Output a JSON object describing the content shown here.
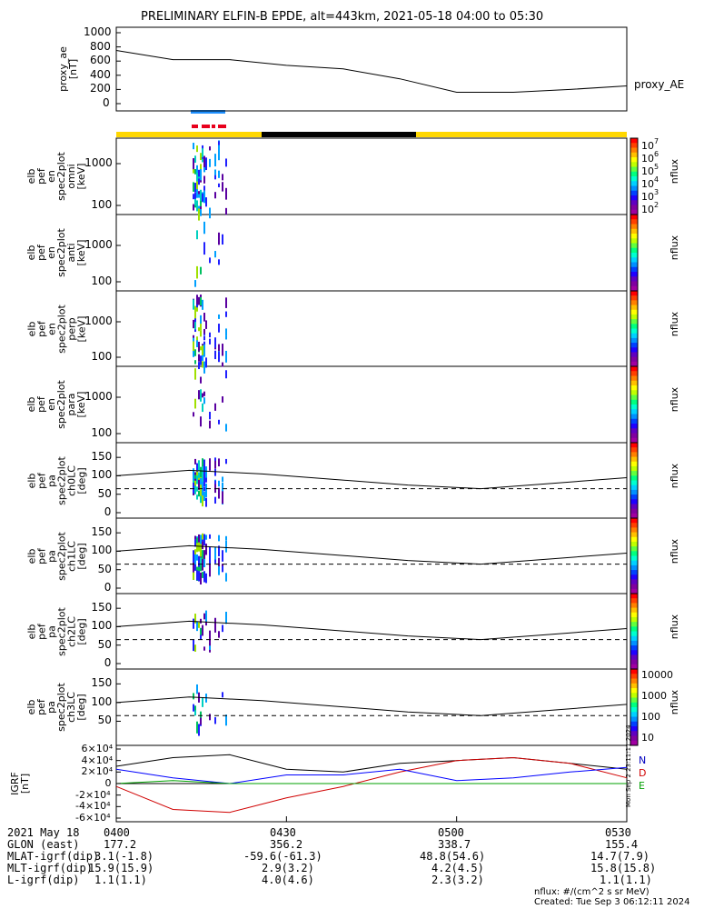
{
  "title": "PRELIMINARY ELFIN-B EPDE, alt=443km, 2021-05-18 04:00 to 05:30",
  "colors": {
    "orbit_bar_light": "#ffd700",
    "orbit_bar_dark": "#000000",
    "sci_zone_blue": "#1e90ff",
    "sci_zone_red": "#e8001c"
  },
  "panels": [
    {
      "id": "ae",
      "ylabel": [
        "proxy_ae",
        "[nT]"
      ],
      "yticks": [
        "0",
        "200",
        "400",
        "600",
        "800",
        "1000"
      ],
      "right_label": "proxy_AE"
    },
    {
      "id": "omni",
      "ylabel": [
        "elb",
        "pef",
        "en",
        "spec2plot",
        "omni",
        "[keV]"
      ],
      "yticks": [
        "100",
        "1000"
      ],
      "cbar": [
        "10",
        "2",
        "10",
        "3",
        "10",
        "4",
        "10",
        "5",
        "10",
        "6",
        "10",
        "7"
      ],
      "cbar_label": "nflux"
    },
    {
      "id": "anti",
      "ylabel": [
        "elb",
        "pef",
        "en",
        "spec2plot",
        "anti",
        "[keV]"
      ],
      "yticks": [
        "100",
        "1000"
      ],
      "cbar_label": "nflux"
    },
    {
      "id": "perp",
      "ylabel": [
        "elb",
        "pef",
        "en",
        "spec2plot",
        "perp",
        "[keV]"
      ],
      "yticks": [
        "100",
        "1000"
      ],
      "cbar_label": "nflux"
    },
    {
      "id": "para",
      "ylabel": [
        "elb",
        "pef",
        "en",
        "spec2plot",
        "para",
        "[keV]"
      ],
      "yticks": [
        "100",
        "1000"
      ],
      "cbar_label": "nflux"
    },
    {
      "id": "ch0",
      "ylabel": [
        "elb",
        "pef",
        "pa",
        "spec2plot",
        "ch0LC",
        "[deg]"
      ],
      "yticks": [
        "0",
        "50",
        "100",
        "150"
      ],
      "cbar_label": "nflux"
    },
    {
      "id": "ch1",
      "ylabel": [
        "elb",
        "pef",
        "pa",
        "spec2plot",
        "ch1LC",
        "[deg]"
      ],
      "yticks": [
        "0",
        "50",
        "100",
        "150"
      ],
      "cbar_label": "nflux"
    },
    {
      "id": "ch2",
      "ylabel": [
        "elb",
        "pef",
        "pa",
        "spec2plot",
        "ch2LC",
        "[deg]"
      ],
      "yticks": [
        "0",
        "50",
        "100",
        "150"
      ],
      "cbar_label": "nflux"
    },
    {
      "id": "ch3",
      "ylabel": [
        "elb",
        "pef",
        "pa",
        "spec2plot",
        "ch3LC",
        "[deg]"
      ],
      "yticks": [
        "50",
        "100",
        "150"
      ],
      "cbar": [
        "10",
        "100",
        "1000",
        "10000"
      ],
      "cbar_label": "nflux"
    },
    {
      "id": "bfield",
      "ylabel": [
        "IGRF",
        "[nT]"
      ],
      "yticks": [
        "-6×10⁴",
        "-4×10⁴",
        "-2×10⁴",
        "0",
        "2×10⁴",
        "4×10⁴",
        "6×10⁴"
      ],
      "legend": [
        "N",
        "D",
        "E"
      ]
    }
  ],
  "footer": {
    "rows": [
      {
        "label": "2021 May 18",
        "values": [
          "0400",
          "0430",
          "0500",
          "0530"
        ]
      },
      {
        "label": "GLON (east)",
        "values": [
          "177.2",
          "356.2",
          "338.7",
          "155.4"
        ]
      },
      {
        "label": "MLAT-igrf(dip)",
        "values": [
          "3.1(-1.8)",
          "-59.6(-61.3)",
          "48.8(54.6)",
          "14.7(7.9)"
        ]
      },
      {
        "label": "MLT-igrf(dip)",
        "values": [
          "15.9(15.9)",
          "2.9(3.2)",
          "4.2(4.5)",
          "15.8(15.8)"
        ]
      },
      {
        "label": "L-igrf(dip)",
        "values": [
          "1.1(1.1)",
          "4.0(4.6)",
          "2.3(3.2)",
          "1.1(1.1)"
        ]
      }
    ],
    "units_note": "nflux: #/(cm^2 s sr MeV)",
    "created": "Created: Tue Sep  3 06:12:11 2024",
    "side_stamp": "Mon Sep  2 23:11:11 2024"
  },
  "chart_data": [
    {
      "type": "line",
      "name": "proxy_ae",
      "x": [
        "0400",
        "0410",
        "0420",
        "0430",
        "0440",
        "0450",
        "0500",
        "0510",
        "0520",
        "0530"
      ],
      "values": [
        750,
        620,
        620,
        540,
        490,
        350,
        160,
        160,
        200,
        250
      ],
      "ylim": [
        0,
        1000
      ],
      "ylabel": "proxy_ae [nT]"
    },
    {
      "type": "heatmap",
      "name": "spectrograms",
      "time_range": [
        "0400",
        "0530"
      ],
      "active_window": [
        "0415",
        "0420"
      ],
      "energy_range_keV": [
        60,
        2500
      ],
      "pitch_angle_range_deg": [
        0,
        180
      ],
      "colorbar": "log10 nflux 1e2–1e7"
    },
    {
      "type": "line",
      "name": "loss_cone",
      "series": [
        {
          "name": "solid",
          "values": [
            100,
            115,
            105,
            90,
            75,
            65,
            80,
            95
          ]
        },
        {
          "name": "dashed",
          "values": [
            65,
            65,
            65,
            65,
            65,
            65,
            65,
            65
          ]
        }
      ]
    },
    {
      "type": "line",
      "name": "IGRF",
      "ylim": [
        -60000,
        60000
      ],
      "series": [
        {
          "name": "N",
          "color": "#000000",
          "values": [
            30000,
            45000,
            50000,
            25000,
            20000,
            35000,
            40000,
            45000,
            35000,
            25000
          ]
        },
        {
          "name": "D",
          "color": "#d00000",
          "values": [
            -5000,
            -45000,
            -50000,
            -25000,
            -5000,
            20000,
            40000,
            45000,
            35000,
            10000
          ]
        },
        {
          "name": "E",
          "color": "#0000ff",
          "values": [
            25000,
            10000,
            0,
            15000,
            15000,
            25000,
            5000,
            10000,
            20000,
            28000
          ]
        },
        {
          "name": "green",
          "color": "#00a000",
          "values": [
            0,
            5000,
            0,
            0,
            0,
            0,
            0,
            0,
            0,
            0
          ]
        }
      ]
    }
  ]
}
